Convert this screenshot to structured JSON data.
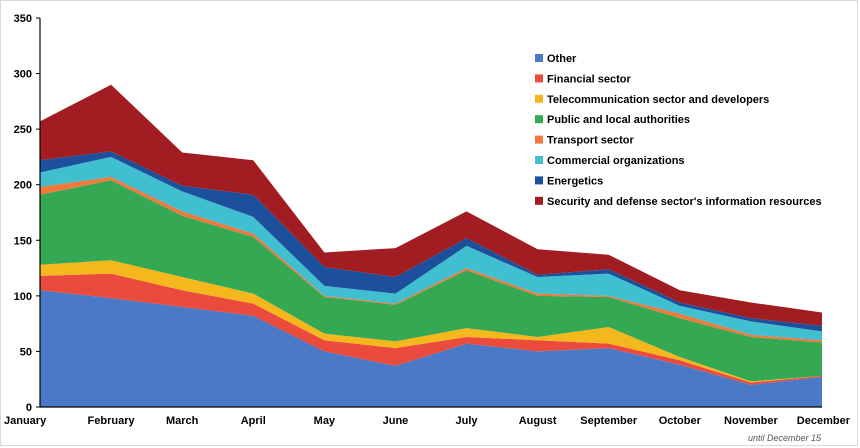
{
  "chart_data": {
    "type": "area",
    "stacked": true,
    "title": "",
    "xlabel": "",
    "ylabel": "",
    "ylim": [
      0,
      350
    ],
    "yticks": [
      0,
      50,
      100,
      150,
      200,
      250,
      300,
      350
    ],
    "categories": [
      "January",
      "February",
      "March",
      "April",
      "May",
      "June",
      "July",
      "August",
      "September",
      "October",
      "November",
      "December"
    ],
    "series": [
      {
        "name": "Other",
        "color": "#4a7ac7",
        "values": [
          105,
          98,
          90,
          82,
          50,
          37,
          57,
          50,
          53,
          38,
          20,
          27
        ]
      },
      {
        "name": "Financial sector",
        "color": "#ea4b3c",
        "values": [
          13,
          22,
          15,
          11,
          10,
          16,
          6,
          10,
          4,
          4,
          2,
          1
        ]
      },
      {
        "name": "Telecommunication sector and developers",
        "color": "#f4b71c",
        "values": [
          10,
          12,
          12,
          9,
          6,
          6,
          8,
          3,
          15,
          3,
          1,
          0
        ]
      },
      {
        "name": "Public and local authorities",
        "color": "#34a853",
        "values": [
          63,
          72,
          55,
          51,
          33,
          33,
          52,
          37,
          27,
          35,
          40,
          30
        ]
      },
      {
        "name": "Transport sector",
        "color": "#f07a3c",
        "values": [
          7,
          3,
          4,
          3,
          1,
          1,
          2,
          2,
          1,
          4,
          2,
          2
        ]
      },
      {
        "name": "Commercial organizations",
        "color": "#3fbfcf",
        "values": [
          13,
          18,
          18,
          15,
          9,
          9,
          20,
          15,
          20,
          7,
          12,
          8
        ]
      },
      {
        "name": "Energetics",
        "color": "#1c4f9c",
        "values": [
          11,
          5,
          5,
          20,
          17,
          15,
          7,
          2,
          4,
          3,
          3,
          5
        ]
      },
      {
        "name": "Security and defense sector's information resources",
        "color": "#a11d22",
        "values": [
          35,
          60,
          30,
          31,
          13,
          26,
          24,
          23,
          13,
          11,
          14,
          12
        ]
      }
    ],
    "legend_position": "right",
    "grid": false,
    "annotation": "until December 15"
  }
}
